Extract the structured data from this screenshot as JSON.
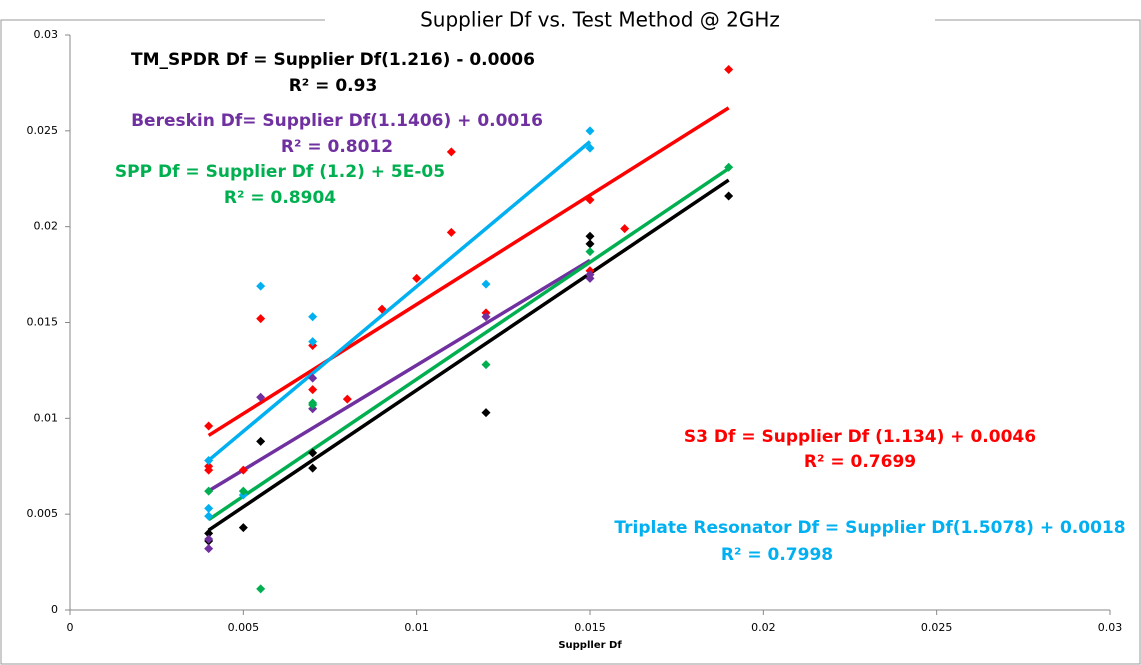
{
  "chart_data": {
    "type": "scatter",
    "title": "Supplier Df vs. Test Method @ 2GHz",
    "x_label": "Suppller Df",
    "xlim": [
      0,
      0.03
    ],
    "xticks": [
      0,
      0.005,
      0.01,
      0.015,
      0.02,
      0.025,
      0.03
    ],
    "ylim": [
      0,
      0.03
    ],
    "yticks": [
      0,
      0.005,
      0.01,
      0.015,
      0.02,
      0.025,
      0.03
    ],
    "trendlines": true,
    "series": [
      {
        "color": "#000000",
        "x": [
          0.004,
          0.004,
          0.005,
          0.0055,
          0.007,
          0.007,
          0.012,
          0.015,
          0.015,
          0.019
        ],
        "values": [
          0.0036,
          0.004,
          0.0043,
          0.0088,
          0.0074,
          0.0082,
          0.0103,
          0.0191,
          0.0195,
          0.0216
        ]
      },
      {
        "color": "#ff0000",
        "x": [
          0.004,
          0.004,
          0.004,
          0.005,
          0.0055,
          0.007,
          0.007,
          0.008,
          0.009,
          0.01,
          0.011,
          0.011,
          0.012,
          0.015,
          0.015,
          0.016,
          0.019
        ],
        "values": [
          0.0096,
          0.0075,
          0.0073,
          0.0073,
          0.0152,
          0.0138,
          0.0115,
          0.011,
          0.0157,
          0.0173,
          0.0197,
          0.0239,
          0.0155,
          0.0214,
          0.0177,
          0.0199,
          0.0282
        ]
      },
      {
        "color": "#00b0f0",
        "x": [
          0.004,
          0.004,
          0.004,
          0.005,
          0.0055,
          0.007,
          0.007,
          0.012,
          0.015,
          0.015
        ],
        "values": [
          0.0078,
          0.0053,
          0.0049,
          0.006,
          0.0169,
          0.0153,
          0.014,
          0.017,
          0.025,
          0.0241
        ]
      },
      {
        "color": "#7030a0",
        "x": [
          0.004,
          0.004,
          0.0055,
          0.007,
          0.007,
          0.012,
          0.015,
          0.015
        ],
        "values": [
          0.0032,
          0.0037,
          0.0111,
          0.0121,
          0.0105,
          0.0153,
          0.0173,
          0.0175
        ]
      },
      {
        "color": "#00b050",
        "x": [
          0.004,
          0.005,
          0.0055,
          0.007,
          0.007,
          0.012,
          0.015,
          0.019
        ],
        "values": [
          0.0062,
          0.0062,
          0.0011,
          0.0107,
          0.0108,
          0.0128,
          0.0187,
          0.0231
        ]
      }
    ],
    "annotations": [
      {
        "text": "TM_SPDR Df = Supplier Df(1.216) - 0.0006",
        "color": "#000000"
      },
      {
        "text": "R² = 0.93",
        "color": "#000000"
      },
      {
        "text": "Bereskin Df= Supplier Df(1.1406) + 0.0016",
        "color": "#7030a0"
      },
      {
        "text": "R² = 0.8012",
        "color": "#7030a0"
      },
      {
        "text": "SPP Df = Supplier Df (1.2) + 5E-05",
        "color": "#00b050"
      },
      {
        "text": "R² = 0.8904",
        "color": "#00b050"
      },
      {
        "text": "S3 Df = Supplier Df (1.134) + 0.0046",
        "color": "#ff0000"
      },
      {
        "text": "R² = 0.7699",
        "color": "#ff0000"
      },
      {
        "text": "Triplate Resonator Df = Supplier Df(1.5078) + 0.0018",
        "color": "#00b0f0"
      },
      {
        "text": "R² = 0.7998",
        "color": "#00b0f0"
      }
    ]
  }
}
